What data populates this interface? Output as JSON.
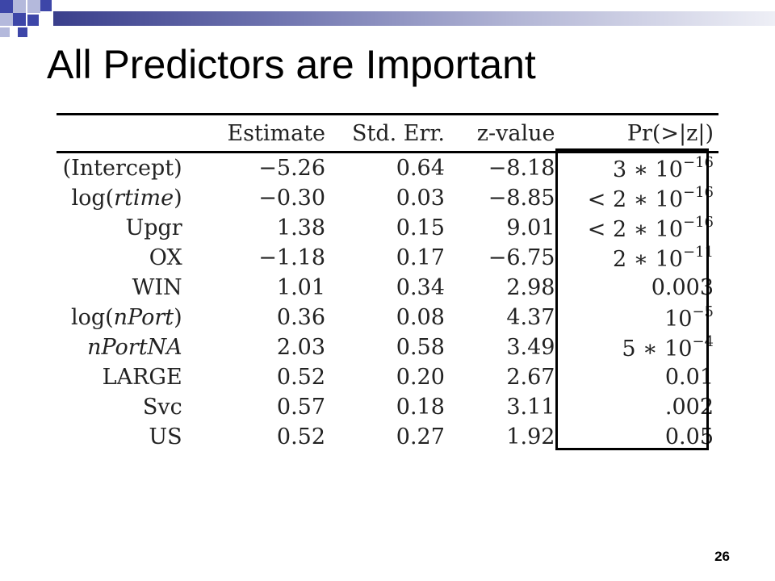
{
  "slide": {
    "title": "All Predictors are Important",
    "page_number": "26",
    "accent_colors": [
      "#3d46a8",
      "#b4b9dc"
    ]
  },
  "table": {
    "headers": [
      "",
      "Estimate",
      "Std. Err.",
      "z-value",
      "Pr(>|z|)"
    ],
    "rows": [
      {
        "label": "(Intercept)",
        "estimate": "−5.26",
        "std_err": "0.64",
        "z_value": "−8.18",
        "p_base": "3 ∗ 10",
        "p_exp": "−16"
      },
      {
        "label": "log(rtime)",
        "estimate": "−0.30",
        "std_err": "0.03",
        "z_value": "−8.85",
        "p_base": "< 2 ∗ 10",
        "p_exp": "−16"
      },
      {
        "label": "Upgr",
        "estimate": "1.38",
        "std_err": "0.15",
        "z_value": "9.01",
        "p_base": "< 2 ∗ 10",
        "p_exp": "−16"
      },
      {
        "label": "OX",
        "estimate": "−1.18",
        "std_err": "0.17",
        "z_value": "−6.75",
        "p_base": "2 ∗ 10",
        "p_exp": "−11"
      },
      {
        "label": "WIN",
        "estimate": "1.01",
        "std_err": "0.34",
        "z_value": "2.98",
        "p_base": "0.003",
        "p_exp": ""
      },
      {
        "label": "log(nPort)",
        "estimate": "0.36",
        "std_err": "0.08",
        "z_value": "4.37",
        "p_base": "10",
        "p_exp": "−5"
      },
      {
        "label": "nPortNA",
        "estimate": "2.03",
        "std_err": "0.58",
        "z_value": "3.49",
        "p_base": "5 ∗ 10",
        "p_exp": "−4"
      },
      {
        "label": "LARGE",
        "estimate": "0.52",
        "std_err": "0.20",
        "z_value": "2.67",
        "p_base": "0.01",
        "p_exp": ""
      },
      {
        "label": "Svc",
        "estimate": "0.57",
        "std_err": "0.18",
        "z_value": "3.11",
        "p_base": ".002",
        "p_exp": ""
      },
      {
        "label": "US",
        "estimate": "0.52",
        "std_err": "0.27",
        "z_value": "1.92",
        "p_base": "0.05",
        "p_exp": ""
      }
    ]
  }
}
